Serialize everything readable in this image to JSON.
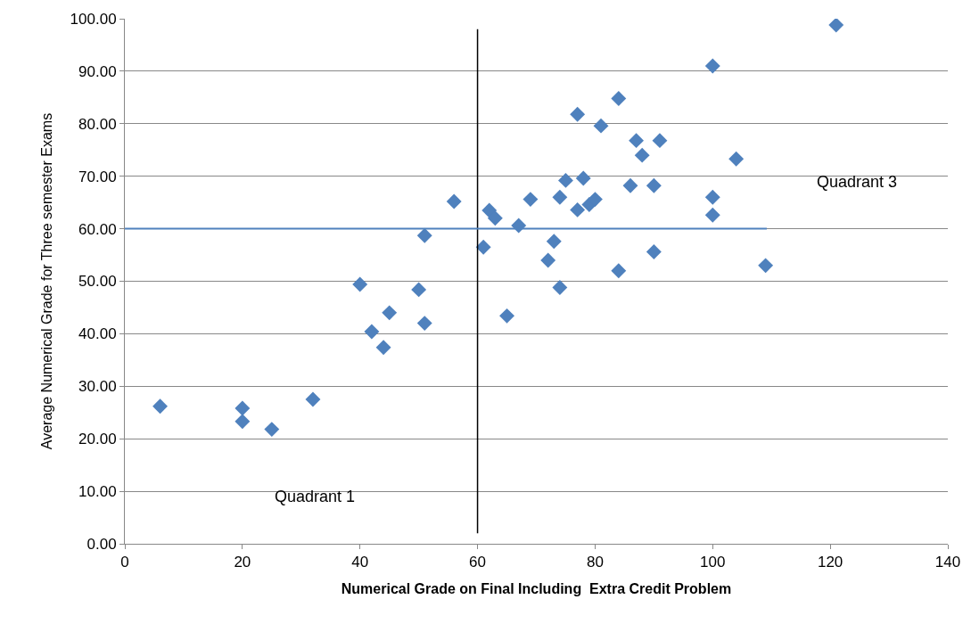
{
  "chart_data": {
    "type": "scatter",
    "xlabel": "Numerical Grade on Final Including  Extra Credit Problem",
    "ylabel": "Average Numerical Grade for Three semester Exams",
    "x": [
      6,
      20,
      20,
      25,
      32,
      40,
      42,
      44,
      45,
      50,
      51,
      51,
      56,
      61,
      62,
      63,
      65,
      67,
      69,
      72,
      73,
      74,
      74,
      75,
      77,
      77,
      78,
      79,
      80,
      81,
      84,
      84,
      86,
      87,
      88,
      90,
      90,
      91,
      100,
      100,
      100,
      104,
      109,
      121
    ],
    "series": [
      {
        "color": "#4f81bd",
        "values": [
          26.2,
          25.8,
          23.3,
          21.8,
          27.5,
          49.4,
          40.4,
          37.4,
          44,
          48.4,
          42,
          58.7,
          65.2,
          56.5,
          63.5,
          62,
          43.4,
          60.6,
          65.6,
          54,
          57.6,
          66,
          48.8,
          69.2,
          81.8,
          63.6,
          69.6,
          64.6,
          65.6,
          79.6,
          84.8,
          52,
          68.2,
          76.8,
          74,
          68.2,
          55.6,
          76.8,
          91,
          66,
          62.6,
          73.3,
          53,
          98.8
        ]
      }
    ],
    "marker": "diamond",
    "grid": "y",
    "xlim": [
      0,
      140
    ],
    "xticks": [
      0,
      20,
      40,
      60,
      80,
      100,
      120,
      140
    ],
    "ylim": [
      0,
      100
    ],
    "yticks": [
      {
        "value": 0,
        "label": "0.00"
      },
      {
        "value": 10,
        "label": "10.00"
      },
      {
        "value": 20,
        "label": "20.00"
      },
      {
        "value": 30,
        "label": "30.00"
      },
      {
        "value": 40,
        "label": "40.00"
      },
      {
        "value": 50,
        "label": "50.00"
      },
      {
        "value": 60,
        "label": "60.00"
      },
      {
        "value": 70,
        "label": "70.00"
      },
      {
        "value": 80,
        "label": "80.00"
      },
      {
        "value": 90,
        "label": "90.00"
      },
      {
        "value": 100,
        "label": "100.00"
      }
    ],
    "ref_lines": [
      {
        "axis": "x",
        "value": 60,
        "color": "#000000"
      },
      {
        "axis": "y",
        "value": 60,
        "color": "#4f81bd"
      }
    ],
    "annotations": [
      "Quadrant 1",
      "Quadrant 3"
    ]
  }
}
